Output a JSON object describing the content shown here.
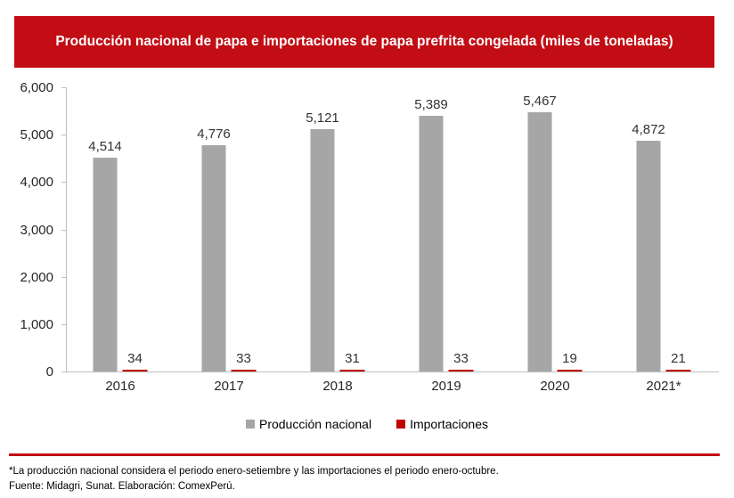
{
  "banner": {
    "title": "Producción nacional de papa e importaciones de papa prefrita congelada (miles de toneladas)",
    "bg_color": "#C20D14",
    "text_color": "#FFFFFF"
  },
  "chart_data": {
    "type": "bar",
    "title": "Producción nacional de papa e importaciones de papa prefrita congelada (miles de toneladas)",
    "categories": [
      "2016",
      "2017",
      "2018",
      "2019",
      "2020",
      "2021*"
    ],
    "series": [
      {
        "name": "Producción nacional",
        "color": "#A6A6A6",
        "values": [
          4514,
          4776,
          5121,
          5389,
          5467,
          4872
        ],
        "labels": [
          "4,514",
          "4,776",
          "5,121",
          "5,389",
          "5,467",
          "4,872"
        ]
      },
      {
        "name": "Importaciones",
        "color": "#C00000",
        "values": [
          34,
          33,
          31,
          33,
          19,
          21
        ],
        "labels": [
          "34",
          "33",
          "31",
          "33",
          "19",
          "21"
        ]
      }
    ],
    "xlabel": "",
    "ylabel": "",
    "ylim": [
      0,
      6000
    ],
    "yticks": [
      {
        "value": 6000,
        "label": "6,000"
      },
      {
        "value": 5000,
        "label": "5,000"
      },
      {
        "value": 4000,
        "label": "4,000"
      },
      {
        "value": 3000,
        "label": "3,000"
      },
      {
        "value": 2000,
        "label": "2,000"
      },
      {
        "value": 1000,
        "label": "1,000"
      },
      {
        "value": 0,
        "label": "0"
      }
    ],
    "gridlines": false,
    "legend_position": "bottom"
  },
  "legend": {
    "items": [
      {
        "label": "Producción nacional",
        "color": "#A6A6A6"
      },
      {
        "label": "Importaciones",
        "color": "#C00000"
      }
    ]
  },
  "footer": {
    "note": "*La producción nacional considera el periodo enero-setiembre y las importaciones el periodo enero-octubre.",
    "source": "Fuente: Midagri, Sunat. Elaboración: ComexPerú."
  }
}
